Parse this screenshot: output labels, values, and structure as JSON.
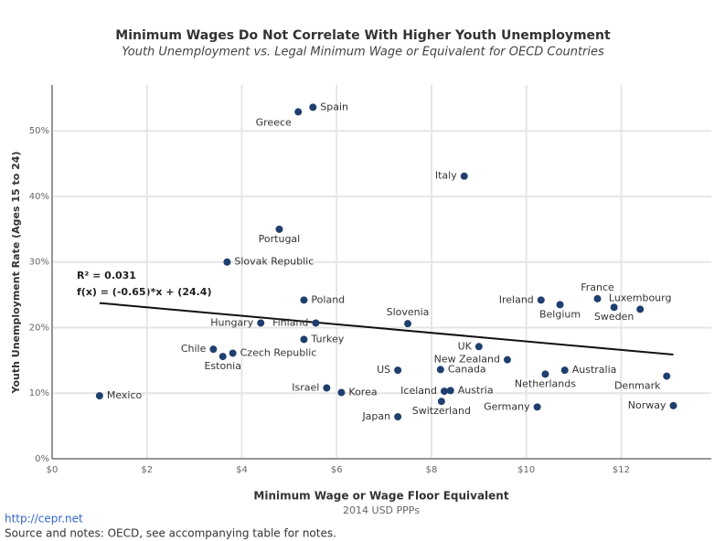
{
  "chart_data": {
    "type": "scatter",
    "title": "Minimum Wages Do Not Correlate With Higher Youth Unemployment",
    "subtitle": "Youth Unemployment vs. Legal Minimum Wage or Equivalent for OECD Countries",
    "x_label": "Minimum Wage or Wage Floor Equivalent",
    "x_sublabel": "2014 USD PPPs",
    "y_label": "Youth Unemployment Rate (Ages 15 to 24)",
    "annotations": [
      "R² = 0.031",
      "f(x) = (-0.65)*x + (24.4)"
    ],
    "footer_link": "http://cepr.net",
    "footer_note": "Source and notes: OECD, see accompanying table for notes.",
    "color": "#1f3f6e",
    "grid": true,
    "xlim": [
      0,
      13.9
    ],
    "ylim": [
      0,
      57
    ],
    "xticks": [
      {
        "value": 0,
        "label": "$0"
      },
      {
        "value": 2,
        "label": "$2"
      },
      {
        "value": 4,
        "label": "$4"
      },
      {
        "value": 6,
        "label": "$6"
      },
      {
        "value": 8,
        "label": "$8"
      },
      {
        "value": 10,
        "label": "$10"
      },
      {
        "value": 12,
        "label": "$12"
      }
    ],
    "yticks": [
      {
        "value": 0,
        "label": "0%"
      },
      {
        "value": 10,
        "label": "10%"
      },
      {
        "value": 20,
        "label": "20%"
      },
      {
        "value": 30,
        "label": "30%"
      },
      {
        "value": 40,
        "label": "40%"
      },
      {
        "value": 50,
        "label": "50%"
      }
    ],
    "labels": [
      "Spain",
      "Greece",
      "Italy",
      "Portugal",
      "Slovak Republic",
      "Poland",
      "Hungary",
      "Finland",
      "Slovenia",
      "Turkey",
      "Chile",
      "Estonia",
      "Czech Republic",
      "Mexico",
      "Israel",
      "Korea",
      "Japan",
      "US",
      "Canada",
      "Iceland",
      "Austria",
      "Switzerland",
      "UK",
      "New Zealand",
      "Germany",
      "Netherlands",
      "Australia",
      "Ireland",
      "Belgium",
      "France",
      "Sweden",
      "Luxembourg",
      "Denmark",
      "Norway"
    ],
    "x": [
      5.5,
      5.19,
      8.69,
      4.79,
      3.69,
      5.31,
      4.4,
      5.56,
      7.5,
      5.31,
      3.4,
      3.6,
      3.81,
      1.0,
      5.79,
      6.1,
      7.29,
      7.29,
      8.19,
      8.27,
      8.4,
      8.21,
      9.0,
      9.6,
      10.23,
      10.4,
      10.81,
      10.31,
      10.71,
      11.5,
      11.85,
      12.4,
      12.96,
      13.1
    ],
    "values": [
      53.6,
      52.9,
      43.1,
      35.0,
      30.0,
      24.2,
      20.7,
      20.7,
      20.6,
      18.2,
      16.7,
      15.6,
      16.1,
      9.6,
      10.8,
      10.1,
      6.4,
      13.5,
      13.6,
      10.3,
      10.4,
      8.75,
      17.1,
      15.1,
      7.9,
      12.9,
      13.5,
      24.2,
      23.5,
      24.4,
      23.1,
      22.8,
      12.6,
      8.1
    ],
    "trendline": {
      "x": [
        1,
        13.1
      ],
      "values": [
        23.75,
        15.885
      ]
    }
  }
}
